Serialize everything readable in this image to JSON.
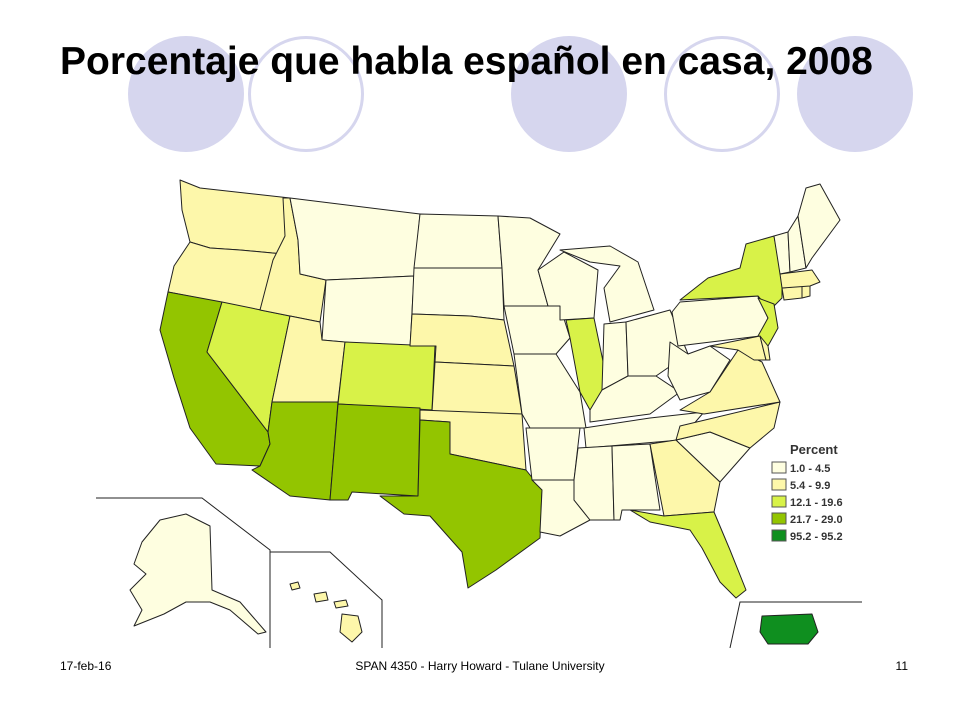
{
  "slide": {
    "title": "Porcentaje que habla español en casa, 2008",
    "footer_date": "17-feb-16",
    "footer_center": "SPAN 4350 - Harry Howard - Tulane University",
    "page_number": "11"
  },
  "legend": {
    "title": "Percent",
    "items": [
      {
        "label": "1.0 - 4.5",
        "color": "#fefee0"
      },
      {
        "label": "5.4 - 9.9",
        "color": "#fdf7aa"
      },
      {
        "label": "12.1 - 19.6",
        "color": "#d8f248"
      },
      {
        "label": "21.7 - 29.0",
        "color": "#93c500"
      },
      {
        "label": "95.2 - 95.2",
        "color": "#0f8f1f"
      }
    ]
  },
  "regions": [
    {
      "name": "Washington",
      "class": 1
    },
    {
      "name": "Oregon",
      "class": 1
    },
    {
      "name": "California",
      "class": 3
    },
    {
      "name": "Nevada",
      "class": 2
    },
    {
      "name": "Idaho",
      "class": 1
    },
    {
      "name": "Montana",
      "class": 0
    },
    {
      "name": "Wyoming",
      "class": 0
    },
    {
      "name": "Utah",
      "class": 1
    },
    {
      "name": "Colorado",
      "class": 2
    },
    {
      "name": "Arizona",
      "class": 3
    },
    {
      "name": "New Mexico",
      "class": 3
    },
    {
      "name": "North Dakota",
      "class": 0
    },
    {
      "name": "South Dakota",
      "class": 0
    },
    {
      "name": "Nebraska",
      "class": 1
    },
    {
      "name": "Kansas",
      "class": 1
    },
    {
      "name": "Oklahoma",
      "class": 1
    },
    {
      "name": "Texas",
      "class": 3
    },
    {
      "name": "Minnesota",
      "class": 0
    },
    {
      "name": "Iowa",
      "class": 0
    },
    {
      "name": "Missouri",
      "class": 0
    },
    {
      "name": "Arkansas",
      "class": 0
    },
    {
      "name": "Louisiana",
      "class": 0
    },
    {
      "name": "Wisconsin",
      "class": 0
    },
    {
      "name": "Illinois",
      "class": 2
    },
    {
      "name": "Michigan",
      "class": 0
    },
    {
      "name": "Indiana",
      "class": 0
    },
    {
      "name": "Ohio",
      "class": 0
    },
    {
      "name": "Kentucky",
      "class": 0
    },
    {
      "name": "Tennessee",
      "class": 0
    },
    {
      "name": "Mississippi",
      "class": 0
    },
    {
      "name": "Alabama",
      "class": 0
    },
    {
      "name": "Georgia",
      "class": 1
    },
    {
      "name": "Florida",
      "class": 2
    },
    {
      "name": "South Carolina",
      "class": 0
    },
    {
      "name": "North Carolina",
      "class": 1
    },
    {
      "name": "Virginia",
      "class": 1
    },
    {
      "name": "West Virginia",
      "class": 0
    },
    {
      "name": "Pennsylvania",
      "class": 0
    },
    {
      "name": "New York",
      "class": 2
    },
    {
      "name": "New Jersey",
      "class": 2
    },
    {
      "name": "Maryland",
      "class": 1
    },
    {
      "name": "Delaware",
      "class": 1
    },
    {
      "name": "Connecticut",
      "class": 1
    },
    {
      "name": "Rhode Island",
      "class": 1
    },
    {
      "name": "Massachusetts",
      "class": 1
    },
    {
      "name": "Vermont",
      "class": 0
    },
    {
      "name": "New Hampshire",
      "class": 0
    },
    {
      "name": "Maine",
      "class": 0
    },
    {
      "name": "Alaska",
      "class": 0
    },
    {
      "name": "Hawaii",
      "class": 1
    },
    {
      "name": "Puerto Rico",
      "class": 4
    }
  ]
}
